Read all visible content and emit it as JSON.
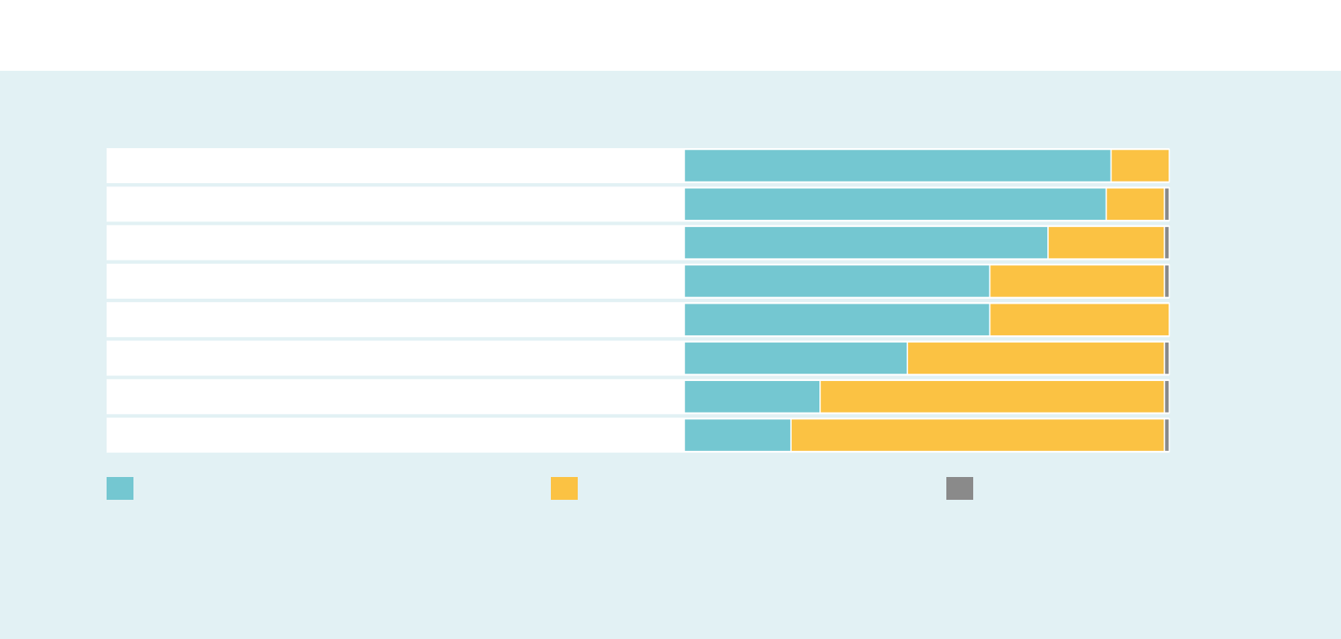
{
  "chart_data": {
    "type": "stacked-bar-horizontal",
    "categories": [
      null,
      null,
      null,
      null,
      null,
      null,
      null,
      null
    ],
    "series": [
      {
        "color": "#74c7d1",
        "values": [
          88,
          87,
          75,
          63,
          63,
          46,
          28,
          22
        ]
      },
      {
        "color": "#fbc243",
        "values": [
          12,
          12,
          24,
          36,
          37,
          53,
          71,
          77
        ]
      },
      {
        "color": "#8a8a8a",
        "values": [
          0,
          1,
          1,
          1,
          0,
          1,
          1,
          1
        ]
      }
    ],
    "xlim": [
      0,
      100
    ]
  }
}
